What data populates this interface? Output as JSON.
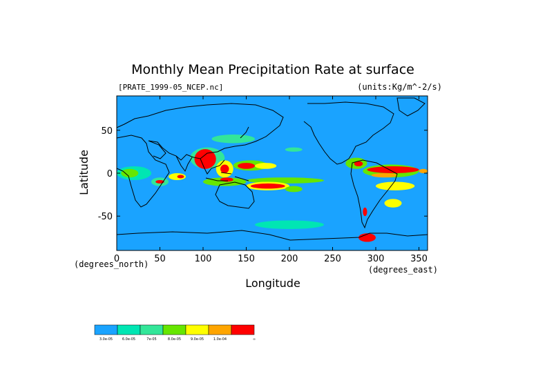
{
  "chart_data": {
    "type": "heatmap",
    "title": "Monthly Mean Precipitation Rate at surface",
    "file_label": "[PRATE_1999-05_NCEP.nc]",
    "units_label": "(units:Kg/m^-2/s)",
    "xlabel": "Longitude",
    "ylabel": "Latitude",
    "x_unit_label": "(degrees_east)",
    "y_unit_label": "(degrees_north)",
    "xlim": [
      0,
      360
    ],
    "ylim": [
      -90,
      90
    ],
    "x_ticks": [
      "0",
      "50",
      "100",
      "150",
      "200",
      "250",
      "300",
      "350"
    ],
    "x_tick_values": [
      0,
      50,
      100,
      150,
      200,
      250,
      300,
      350
    ],
    "y_ticks": [
      "50",
      "0",
      "-50"
    ],
    "y_tick_values": [
      50,
      0,
      -50
    ],
    "background_level_color": "#1aa3ff",
    "colorbar": {
      "colors": [
        "#1aa3ff",
        "#00e6b3",
        "#33e699",
        "#66e600",
        "#ffff00",
        "#ffa500",
        "#ff0000"
      ],
      "labels": [
        "3.0e-05",
        "6.0e-05",
        "7e-05",
        "8.0e-05",
        "9.0e-05",
        "1.0e-04",
        "∞"
      ]
    },
    "regions": [
      {
        "lon": [
          0,
          40
        ],
        "lat": [
          -8,
          8
        ],
        "level": 1
      },
      {
        "lon": [
          5,
          25
        ],
        "lat": [
          -5,
          5
        ],
        "level": 3
      },
      {
        "lon": [
          40,
          60
        ],
        "lat": [
          -15,
          -5
        ],
        "level": 2
      },
      {
        "lon": [
          45,
          55
        ],
        "lat": [
          -12,
          -8
        ],
        "level": 6
      },
      {
        "lon": [
          60,
          80
        ],
        "lat": [
          -8,
          0
        ],
        "level": 4
      },
      {
        "lon": [
          70,
          78
        ],
        "lat": [
          -6,
          -2
        ],
        "level": 6
      },
      {
        "lon": [
          85,
          125
        ],
        "lat": [
          5,
          30
        ],
        "level": 2
      },
      {
        "lon": [
          90,
          115
        ],
        "lat": [
          5,
          28
        ],
        "level": 6
      },
      {
        "lon": [
          115,
          135
        ],
        "lat": [
          -5,
          15
        ],
        "level": 4
      },
      {
        "lon": [
          120,
          130
        ],
        "lat": [
          0,
          10
        ],
        "level": 6
      },
      {
        "lon": [
          135,
          175
        ],
        "lat": [
          3,
          15
        ],
        "level": 3
      },
      {
        "lon": [
          140,
          160
        ],
        "lat": [
          5,
          12
        ],
        "level": 6
      },
      {
        "lon": [
          160,
          185
        ],
        "lat": [
          5,
          12
        ],
        "level": 4
      },
      {
        "lon": [
          150,
          240
        ],
        "lat": [
          -12,
          -5
        ],
        "level": 3
      },
      {
        "lon": [
          150,
          200
        ],
        "lat": [
          -20,
          -10
        ],
        "level": 4
      },
      {
        "lon": [
          155,
          195
        ],
        "lat": [
          -18,
          -12
        ],
        "level": 6
      },
      {
        "lon": [
          195,
          215
        ],
        "lat": [
          -22,
          -15
        ],
        "level": 3
      },
      {
        "lon": [
          100,
          150
        ],
        "lat": [
          -15,
          -5
        ],
        "level": 3
      },
      {
        "lon": [
          120,
          135
        ],
        "lat": [
          -10,
          -5
        ],
        "level": 6
      },
      {
        "lon": [
          265,
          290
        ],
        "lat": [
          5,
          18
        ],
        "level": 3
      },
      {
        "lon": [
          275,
          285
        ],
        "lat": [
          8,
          14
        ],
        "level": 6
      },
      {
        "lon": [
          285,
          350
        ],
        "lat": [
          -5,
          10
        ],
        "level": 3
      },
      {
        "lon": [
          290,
          350
        ],
        "lat": [
          0,
          8
        ],
        "level": 6
      },
      {
        "lon": [
          295,
          325
        ],
        "lat": [
          -5,
          0
        ],
        "level": 5
      },
      {
        "lon": [
          300,
          345
        ],
        "lat": [
          -20,
          -10
        ],
        "level": 4
      },
      {
        "lon": [
          310,
          330
        ],
        "lat": [
          -40,
          -30
        ],
        "level": 4
      },
      {
        "lon": [
          285,
          290
        ],
        "lat": [
          -50,
          -40
        ],
        "level": 6
      },
      {
        "lon": [
          110,
          160
        ],
        "lat": [
          35,
          45
        ],
        "level": 2
      },
      {
        "lon": [
          195,
          215
        ],
        "lat": [
          25,
          30
        ],
        "level": 2
      },
      {
        "lon": [
          350,
          360
        ],
        "lat": [
          0,
          5
        ],
        "level": 5
      },
      {
        "lon": [
          160,
          240
        ],
        "lat": [
          -65,
          -55
        ],
        "level": 1
      },
      {
        "lon": [
          280,
          300
        ],
        "lat": [
          -80,
          -70
        ],
        "level": 6
      }
    ]
  }
}
